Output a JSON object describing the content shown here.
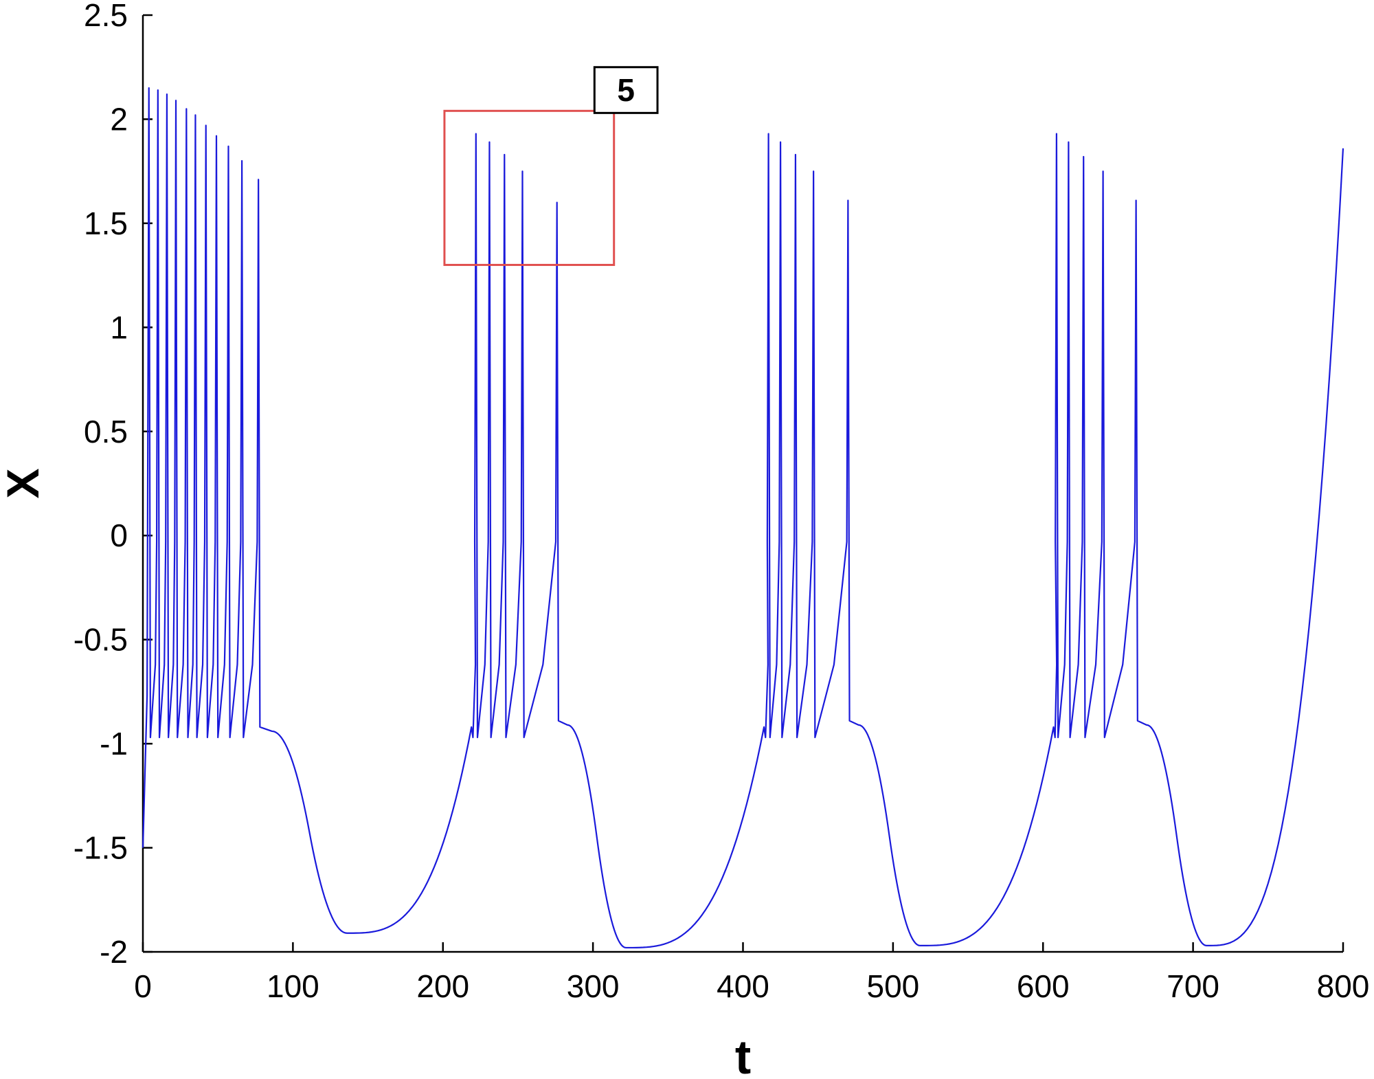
{
  "chart_data": {
    "type": "line",
    "title": "",
    "xlabel": "t",
    "ylabel": "X",
    "xlim": [
      0,
      800
    ],
    "ylim": [
      -2,
      2.5
    ],
    "xticks": [
      0,
      100,
      200,
      300,
      400,
      500,
      600,
      700,
      800
    ],
    "yticks": [
      2.5,
      2,
      1.5,
      1,
      0.5,
      0,
      -0.5,
      -1,
      -1.5,
      -2
    ],
    "grid": false,
    "legend": "none",
    "colors": {
      "line": "#1a1adb",
      "box": "#e0504f",
      "axis": "#000000"
    },
    "series": [
      {
        "start": [
          0,
          -1.5
        ],
        "bursts": [
          {
            "spikes": [
              [
                4,
                2.15
              ],
              [
                10,
                2.14
              ],
              [
                16,
                2.12
              ],
              [
                22,
                2.09
              ],
              [
                29,
                2.05
              ],
              [
                35,
                2.02
              ],
              [
                42,
                1.97
              ],
              [
                49,
                1.92
              ],
              [
                57,
                1.87
              ],
              [
                66,
                1.8
              ],
              [
                77,
                1.71
              ]
            ],
            "spike_floor": -0.97,
            "spike_rise": 1.6,
            "end_time": 78,
            "plateau": -0.94,
            "plateau_end": 86,
            "min": [
              136,
              -1.91
            ]
          },
          {
            "start_time": 219,
            "spikes": [
              [
                222,
                1.93
              ],
              [
                231,
                1.89
              ],
              [
                241,
                1.83
              ],
              [
                253,
                1.75
              ],
              [
                276,
                1.6
              ]
            ],
            "spike_floor": -0.97,
            "spike_rise": 1.6,
            "end_time": 277,
            "plateau": -0.91,
            "plateau_end": 283,
            "min": [
              322,
              -1.98
            ]
          },
          {
            "start_time": 414,
            "spikes": [
              [
                417,
                1.93
              ],
              [
                425,
                1.89
              ],
              [
                435,
                1.83
              ],
              [
                447,
                1.75
              ],
              [
                470,
                1.61
              ]
            ],
            "spike_floor": -0.97,
            "spike_rise": 1.6,
            "end_time": 471,
            "plateau": -0.91,
            "plateau_end": 477,
            "min": [
              518,
              -1.97
            ]
          },
          {
            "start_time": 607,
            "spikes": [
              [
                609,
                1.93
              ],
              [
                617,
                1.89
              ],
              [
                627,
                1.82
              ],
              [
                640,
                1.75
              ],
              [
                662,
                1.61
              ]
            ],
            "spike_floor": -0.97,
            "spike_rise": 1.6,
            "end_time": 663,
            "plateau": -0.91,
            "plateau_end": 669,
            "min": [
              709,
              -1.97
            ]
          }
        ],
        "final_rise": [
          [
            709,
            -1.97
          ],
          [
            800,
            1.86
          ]
        ]
      }
    ],
    "annotations": [
      {
        "type": "rect",
        "x": [
          201,
          314
        ],
        "y": [
          1.3,
          2.04
        ],
        "color": "#e0504f"
      },
      {
        "type": "label",
        "text": "5",
        "x": [
          301,
          343
        ],
        "y": [
          2.03,
          2.25
        ]
      }
    ]
  }
}
